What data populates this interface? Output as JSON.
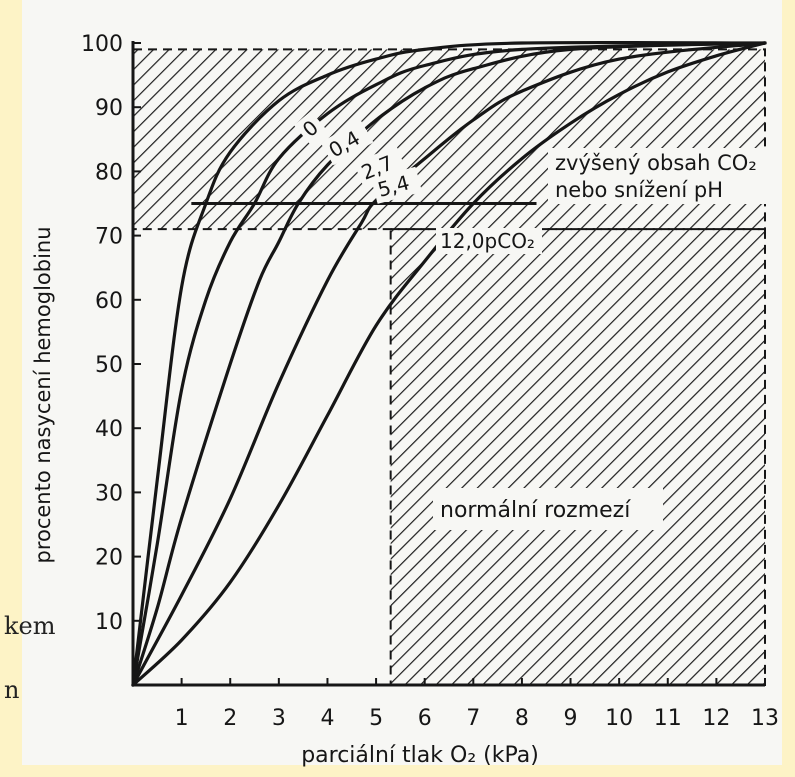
{
  "page": {
    "background": "#fdf3c6",
    "paper": "#f7f7f4",
    "ink": "#161616"
  },
  "fragments": {
    "left_top": "kem",
    "left_bottom": "n"
  },
  "chart_data": {
    "type": "line",
    "title": "",
    "xlabel": "parciální tlak O₂ (kPa)",
    "ylabel": "procento nasycení hemoglobinu",
    "xlim": [
      0,
      13
    ],
    "ylim": [
      0,
      100
    ],
    "x_ticks": [
      "1",
      "2",
      "3",
      "4",
      "5",
      "6",
      "7",
      "8",
      "9",
      "10",
      "11",
      "12",
      "13"
    ],
    "y_ticks": [
      "10",
      "20",
      "30",
      "40",
      "50",
      "60",
      "70",
      "80",
      "90",
      "100"
    ],
    "grid": false,
    "series": [
      {
        "name": "0",
        "points": [
          [
            0,
            0
          ],
          [
            0.5,
            32
          ],
          [
            1,
            62
          ],
          [
            1.5,
            75
          ],
          [
            2,
            83
          ],
          [
            3,
            91
          ],
          [
            4,
            95
          ],
          [
            5,
            97.5
          ],
          [
            6,
            99
          ],
          [
            8,
            100
          ],
          [
            13,
            100
          ]
        ]
      },
      {
        "name": "0,4",
        "points": [
          [
            0,
            0
          ],
          [
            0.5,
            22
          ],
          [
            1,
            46
          ],
          [
            1.5,
            60
          ],
          [
            2,
            69
          ],
          [
            2.5,
            75
          ],
          [
            3,
            82
          ],
          [
            4,
            89
          ],
          [
            5,
            93.5
          ],
          [
            6,
            96.5
          ],
          [
            8,
            99
          ],
          [
            13,
            100
          ]
        ]
      },
      {
        "name": "2,7",
        "points": [
          [
            0,
            0
          ],
          [
            0.5,
            12
          ],
          [
            1,
            26
          ],
          [
            2,
            50
          ],
          [
            2.6,
            63
          ],
          [
            3,
            69
          ],
          [
            3.4,
            75
          ],
          [
            4,
            81
          ],
          [
            5,
            88
          ],
          [
            6,
            93
          ],
          [
            7,
            96
          ],
          [
            9,
            99
          ],
          [
            13,
            100
          ]
        ]
      },
      {
        "name": "5,4",
        "points": [
          [
            0,
            0
          ],
          [
            1,
            14
          ],
          [
            2,
            29
          ],
          [
            3,
            47
          ],
          [
            4,
            63
          ],
          [
            4.7,
            72
          ],
          [
            5,
            75.5
          ],
          [
            6,
            82
          ],
          [
            7,
            88
          ],
          [
            8,
            92.5
          ],
          [
            10,
            97.5
          ],
          [
            13,
            100
          ]
        ]
      },
      {
        "name": "12,0pCO₂",
        "points": [
          [
            0,
            0
          ],
          [
            1,
            7
          ],
          [
            2,
            16
          ],
          [
            3,
            28
          ],
          [
            4,
            42
          ],
          [
            5,
            56
          ],
          [
            6,
            66
          ],
          [
            7,
            75
          ],
          [
            8,
            82
          ],
          [
            9,
            87.5
          ],
          [
            10,
            92
          ],
          [
            11,
            95.5
          ],
          [
            12,
            98
          ],
          [
            13,
            100
          ]
        ]
      }
    ],
    "reference_lines": {
      "y": 75,
      "x_from": 1.2,
      "x_to": 8.3
    },
    "regions": [
      {
        "label": "",
        "x": [
          0,
          13
        ],
        "y": [
          71,
          99
        ]
      },
      {
        "label": "normální rozmezí",
        "x": [
          5.3,
          13
        ],
        "y": [
          0,
          71
        ]
      }
    ],
    "annotations": [
      "zvýšený obsah CO₂",
      "nebo snížení pH"
    ]
  }
}
